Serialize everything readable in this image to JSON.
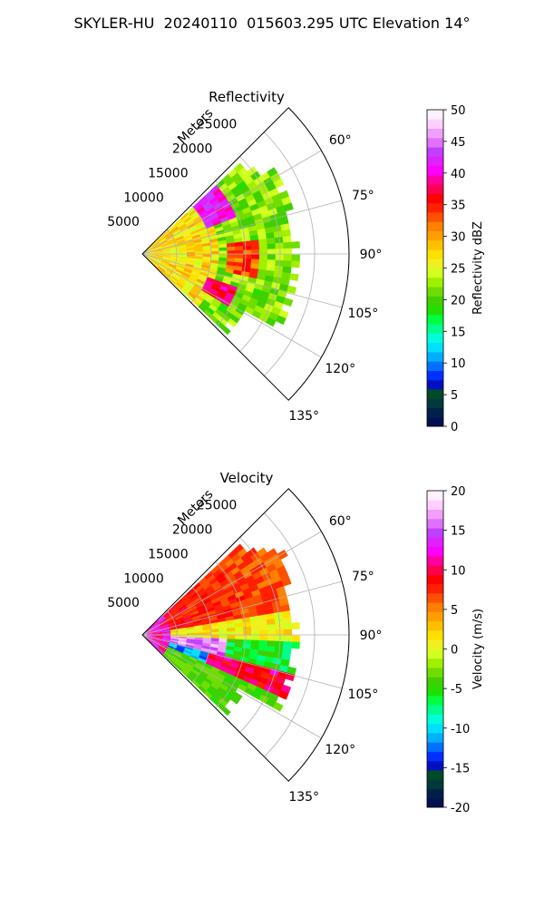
{
  "title": "SKYLER-HU  20240110  015603.295 UTC Elevation 14°",
  "chart_data": [
    {
      "type": "polar-sector",
      "title": "Reflectivity",
      "radial_label": "Meters",
      "radial_ticks": [
        "5000",
        "10000",
        "15000",
        "20000",
        "25000"
      ],
      "angle_ticks": [
        "60°",
        "75°",
        "90°",
        "105°",
        "120°",
        "135°"
      ],
      "theta_range": [
        45,
        135
      ],
      "r_range": [
        0,
        30000
      ],
      "colorbar": {
        "label": "Reflectivity dBZ",
        "ticks": [
          "0",
          "5",
          "10",
          "15",
          "20",
          "25",
          "30",
          "35",
          "40",
          "45",
          "50"
        ],
        "range": [
          0,
          50
        ],
        "colors": [
          "#001050",
          "#00204a",
          "#003a3a",
          "#004a28",
          "#0010c0",
          "#0030ff",
          "#0070ff",
          "#00b0ff",
          "#00e0ff",
          "#00ffd8",
          "#00ff90",
          "#00ff40",
          "#20e000",
          "#40d000",
          "#70dd00",
          "#a0f000",
          "#d0ff20",
          "#f0f020",
          "#ffe000",
          "#ffc000",
          "#ffa000",
          "#ff8000",
          "#ff5000",
          "#ff2000",
          "#ff0000",
          "#ff0050",
          "#ff00a0",
          "#ff00ff",
          "#e020ff",
          "#c040ff",
          "#e070ff",
          "#f0a0ff",
          "#ffd0ff",
          "#fff0ff"
        ]
      }
    },
    {
      "type": "polar-sector",
      "title": "Velocity",
      "radial_label": "Meters",
      "radial_ticks": [
        "5000",
        "10000",
        "15000",
        "20000",
        "25000"
      ],
      "angle_ticks": [
        "60°",
        "75°",
        "90°",
        "105°",
        "120°",
        "135°"
      ],
      "theta_range": [
        45,
        135
      ],
      "r_range": [
        0,
        30000
      ],
      "colorbar": {
        "label": "Velocity (m/s)",
        "ticks": [
          "-20",
          "-15",
          "-10",
          "-5",
          "0",
          "5",
          "10",
          "15",
          "20"
        ],
        "range": [
          -20,
          20
        ],
        "colors": [
          "#001050",
          "#00204a",
          "#003a3a",
          "#004a28",
          "#0010c0",
          "#0030ff",
          "#0070ff",
          "#00b0ff",
          "#00e0ff",
          "#00ffd8",
          "#00ff90",
          "#00ff40",
          "#20e000",
          "#40d000",
          "#70dd00",
          "#a0f000",
          "#d0ff20",
          "#f0f020",
          "#ffe000",
          "#ffc000",
          "#ffa000",
          "#ff8000",
          "#ff5000",
          "#ff2000",
          "#ff0000",
          "#ff0050",
          "#ff00a0",
          "#ff00ff",
          "#e020ff",
          "#c040ff",
          "#e070ff",
          "#f0a0ff",
          "#ffd0ff",
          "#fff0ff"
        ]
      }
    }
  ]
}
